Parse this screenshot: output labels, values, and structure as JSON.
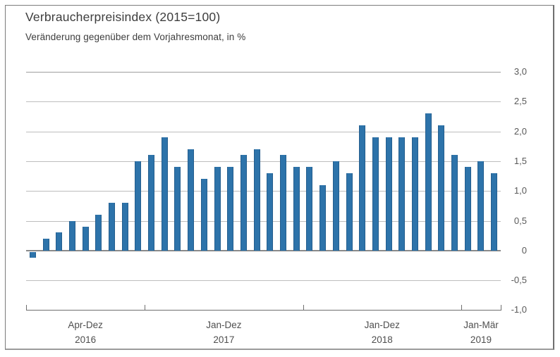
{
  "header": {
    "title": "Verbraucherpreisindex (2015=100)",
    "subtitle": "Veränderung gegenüber dem Vorjahresmonat, in %"
  },
  "colors": {
    "bar": "#2d73aa",
    "bar_edge": "#245e8e",
    "grid": "#bdbdbd",
    "zero_line": "#8a8a8a",
    "axis_line": "#6f6f6f",
    "frame_border": "#7c7c7c",
    "text": "#3d3d3d",
    "tick_text": "#595959"
  },
  "chart_data": {
    "type": "bar",
    "title": "Verbraucherpreisindex (2015=100)",
    "subtitle": "Veränderung gegenüber dem Vorjahresmonat, in %",
    "unit": "%",
    "ylim": [
      -1.0,
      3.0
    ],
    "grid": true,
    "legend": "none",
    "y_ticks": [
      {
        "value": 3.0,
        "label": "3,0"
      },
      {
        "value": 2.5,
        "label": "2,5"
      },
      {
        "value": 2.0,
        "label": "2,0"
      },
      {
        "value": 1.5,
        "label": "1,5"
      },
      {
        "value": 1.0,
        "label": "1,0"
      },
      {
        "value": 0.5,
        "label": "0,5"
      },
      {
        "value": 0.0,
        "label": "0"
      },
      {
        "value": -0.5,
        "label": "-0,5"
      },
      {
        "value": -1.0,
        "label": "-1,0"
      }
    ],
    "groups": [
      {
        "range_label": "Apr-Dez",
        "year_label": "2016",
        "values": [
          -0.1,
          0.2,
          0.3,
          0.5,
          0.4,
          0.6,
          0.8,
          0.8,
          1.5
        ]
      },
      {
        "range_label": "Jan-Dez",
        "year_label": "2017",
        "values": [
          1.6,
          1.9,
          1.4,
          1.7,
          1.2,
          1.4,
          1.4,
          1.6,
          1.7,
          1.3,
          1.6,
          1.4
        ]
      },
      {
        "range_label": "Jan-Dez",
        "year_label": "2018",
        "values": [
          1.4,
          1.1,
          1.5,
          1.3,
          2.1,
          1.9,
          1.9,
          1.9,
          1.9,
          2.3,
          2.1,
          1.6
        ]
      },
      {
        "range_label": "Jan-Mär",
        "year_label": "2019",
        "values": [
          1.4,
          1.5,
          1.3
        ]
      }
    ]
  }
}
